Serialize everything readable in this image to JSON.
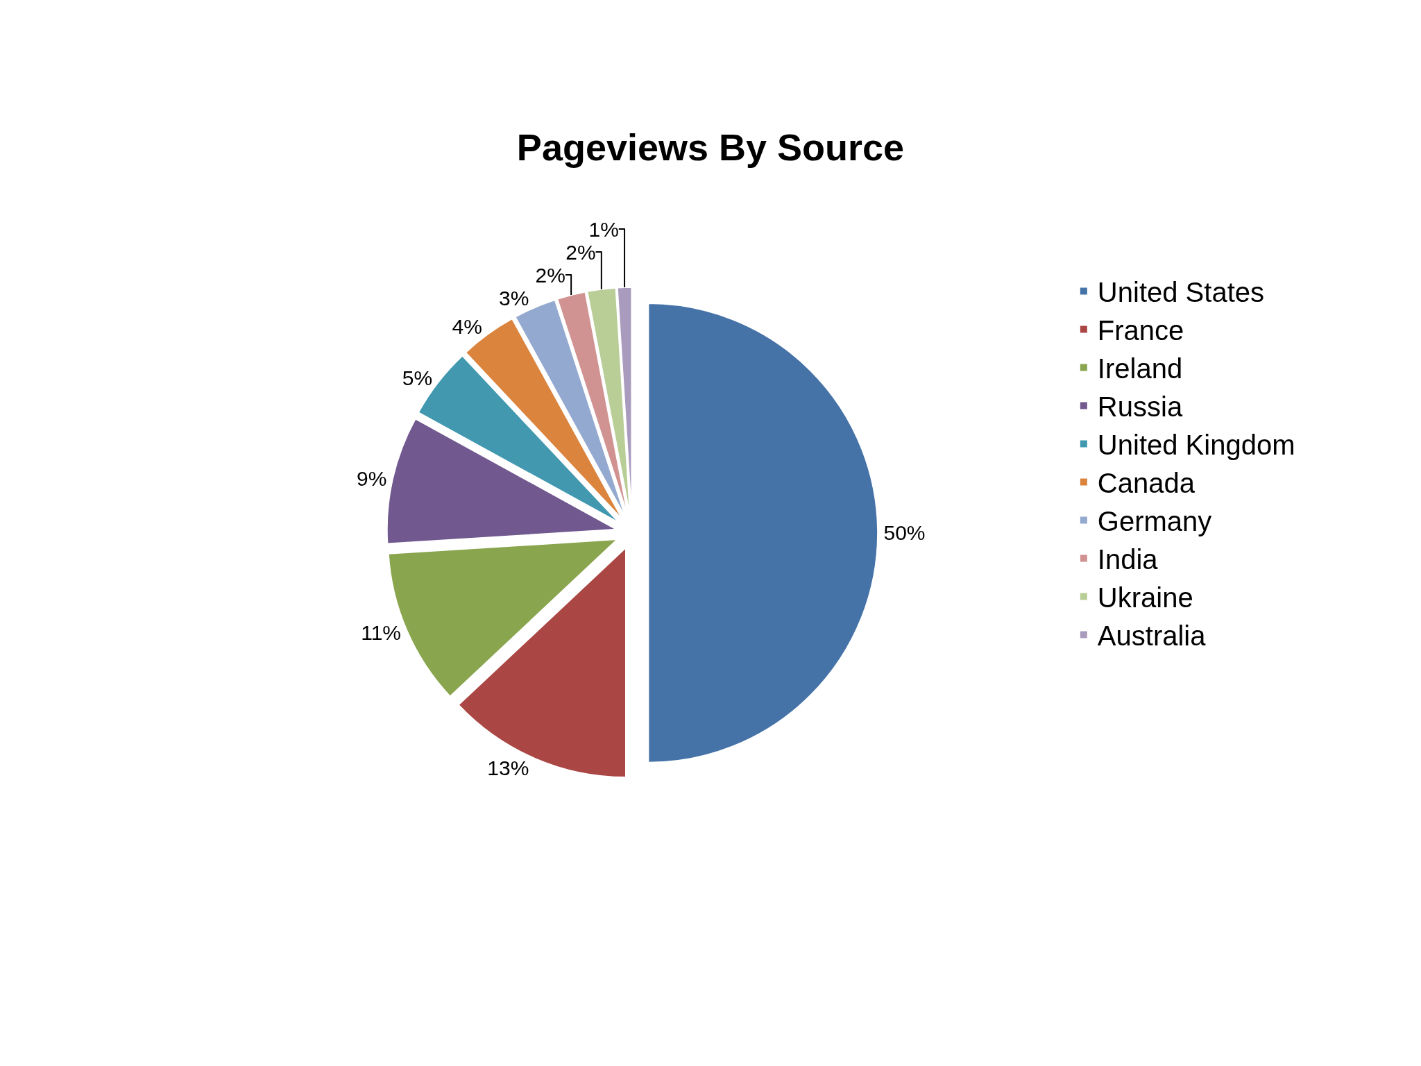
{
  "chart_data": {
    "type": "pie",
    "title": "Pageviews By Source",
    "categories": [
      "United States",
      "France",
      "Ireland",
      "Russia",
      "United Kingdom",
      "Canada",
      "Germany",
      "India",
      "Ukraine",
      "Australia"
    ],
    "values": [
      50,
      13,
      11,
      9,
      5,
      4,
      3,
      2,
      2,
      1
    ],
    "value_labels": [
      "50%",
      "13%",
      "11%",
      "9%",
      "5%",
      "4%",
      "3%",
      "2%",
      "2%",
      "1%"
    ],
    "colors": [
      "#4572a7",
      "#aa4643",
      "#89a54e",
      "#71588f",
      "#4198af",
      "#db843d",
      "#93a9cf",
      "#d19392",
      "#b9cd96",
      "#a99bbd"
    ],
    "legend": "right"
  }
}
